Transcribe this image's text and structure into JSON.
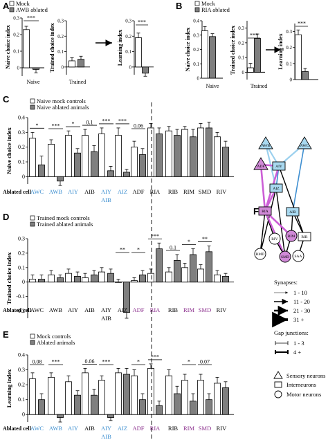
{
  "panel_letters": [
    "A",
    "B",
    "C",
    "D",
    "E",
    "F"
  ],
  "colors": {
    "mock": "#ffffff",
    "ablated": "#7f7f7f",
    "sensory_blue": "#3d8fd0",
    "purple": "#8a2d8c",
    "node_blue": "#a9d9f0",
    "node_magenta": "#d18ad8",
    "edge_magenta": "#cc5fd6",
    "edge_lightblue": "#9bd0ee",
    "edge_blue": "#3e8fd1"
  },
  "chart_data": [
    {
      "id": "A1",
      "type": "bar",
      "ylabel": "Naive choice index",
      "ylim": [
        -0.05,
        0.3
      ],
      "yticks": [
        "0",
        "0.1",
        "0.2",
        "0.3"
      ],
      "categories": [
        "Naive"
      ],
      "legend": [
        "Mock",
        "AWB ablated"
      ],
      "series": [
        {
          "name": "Mock",
          "values": [
            0.23
          ],
          "err": [
            0.02
          ]
        },
        {
          "name": "AWB ablated",
          "values": [
            -0.01
          ],
          "err": [
            0.02
          ]
        }
      ],
      "sig": [
        {
          "label": "***"
        }
      ]
    },
    {
      "id": "A2",
      "type": "bar",
      "ylabel": "Trained choice index",
      "ylim": [
        -0.05,
        0.3
      ],
      "yticks": [
        "0",
        "0.1",
        "0.2",
        "0.3"
      ],
      "categories": [
        "Trained"
      ],
      "series": [
        {
          "values": [
            0.04
          ],
          "err": [
            0.02
          ]
        },
        {
          "values": [
            0.05
          ],
          "err": [
            0.02
          ]
        }
      ]
    },
    {
      "id": "A3",
      "type": "bar",
      "ylabel": "Learning index",
      "ylim": [
        -0.05,
        0.3
      ],
      "yticks": [
        "0",
        "0.1",
        "0.2",
        "0.3"
      ],
      "series": [
        {
          "values": [
            0.19
          ],
          "err": [
            0.03
          ]
        },
        {
          "values": [
            -0.04
          ],
          "err": [
            0.02
          ]
        }
      ],
      "sig": [
        {
          "label": "***"
        }
      ]
    },
    {
      "id": "B1",
      "type": "bar",
      "ylabel": "Naive choice index",
      "ylim": [
        0,
        0.4
      ],
      "yticks": [
        "0",
        "0.1",
        "0.2",
        "0.3",
        "0.4"
      ],
      "categories": [
        "Naive"
      ],
      "legend": [
        "Mock",
        "RIA ablated"
      ],
      "series": [
        {
          "name": "Mock",
          "values": [
            0.33
          ],
          "err": [
            0.03
          ]
        },
        {
          "name": "RIA ablated",
          "values": [
            0.29
          ],
          "err": [
            0.02
          ]
        }
      ]
    },
    {
      "id": "B2",
      "type": "bar",
      "ylabel": "Trained choice index",
      "ylim": [
        -0.05,
        0.35
      ],
      "yticks": [
        "0",
        "0.1",
        "0.2",
        "0.3"
      ],
      "categories": [
        "Trained"
      ],
      "series": [
        {
          "values": [
            0.03
          ],
          "err": [
            0.03
          ]
        },
        {
          "values": [
            0.23
          ],
          "err": [
            0.03
          ]
        }
      ],
      "sig": [
        {
          "label": "***"
        }
      ]
    },
    {
      "id": "B3",
      "type": "bar",
      "ylabel": "Learning index",
      "ylim": [
        0,
        0.35
      ],
      "yticks": [
        "0",
        "0.1",
        "0.2",
        "0.3"
      ],
      "series": [
        {
          "values": [
            0.28
          ],
          "err": [
            0.03
          ]
        },
        {
          "values": [
            0.05
          ],
          "err": [
            0.02
          ]
        }
      ],
      "sig": [
        {
          "label": "***"
        }
      ]
    },
    {
      "id": "C",
      "type": "bar",
      "ylabel": "Naive choice index",
      "ylim": [
        -0.05,
        0.4
      ],
      "yticks": [
        "0",
        "0.1",
        "0.2",
        "0.3",
        "0.4"
      ],
      "xlabel_title": "Ablated cell",
      "categories": [
        "AWC",
        "AWB",
        "AIY",
        "AIB",
        "AIY AIB",
        "AIZ",
        "ADF",
        "RIA",
        "RIB",
        "RIM",
        "SMD",
        "RIV"
      ],
      "legend": [
        "Naive mock controls",
        "Naive ablated animals"
      ],
      "series": [
        {
          "name": "Naive mock controls",
          "values": [
            0.26,
            0.22,
            0.28,
            0.28,
            0.29,
            0.28,
            0.2,
            0.33,
            0.31,
            0.32,
            0.33,
            0.27
          ],
          "err": [
            0.04,
            0.03,
            0.03,
            0.04,
            0.04,
            0.05,
            0.04,
            0.03,
            0.03,
            0.02,
            0.03,
            0.03
          ]
        },
        {
          "name": "Naive ablated animals",
          "values": [
            0.08,
            -0.03,
            0.16,
            0.17,
            0.04,
            0.03,
            0.15,
            0.29,
            0.28,
            0.27,
            0.33,
            0.2
          ],
          "err": [
            0.06,
            0.03,
            0.03,
            0.04,
            0.03,
            0.02,
            0.04,
            0.04,
            0.04,
            0.05,
            0.04,
            0.04
          ]
        }
      ],
      "sig": [
        {
          "cat": 0,
          "label": "*"
        },
        {
          "cat": 1,
          "label": "***"
        },
        {
          "cat": 2,
          "label": "*"
        },
        {
          "cat": 3,
          "label": "0.1"
        },
        {
          "cat": 4,
          "label": "***"
        },
        {
          "cat": 5,
          "label": "***"
        },
        {
          "cat": 6,
          "label": "0.06"
        }
      ],
      "label_colors": [
        "blue",
        "blue",
        "blue",
        "black",
        "blue",
        "blue",
        "black",
        "black",
        "black",
        "black",
        "black",
        "black"
      ]
    },
    {
      "id": "D",
      "type": "bar",
      "ylabel": "Trained choice index",
      "ylim": [
        -0.25,
        0.3
      ],
      "yticks": [
        "-0.2",
        "-0.1",
        "0",
        "0.1",
        "0.2",
        "0.3"
      ],
      "xlabel_title": "Ablated cell",
      "categories": [
        "AWC",
        "AWB",
        "AIY",
        "AIB",
        "AIY AIB",
        "AIZ",
        "ADF",
        "RIA",
        "RIB",
        "RIM",
        "SMD",
        "RIV"
      ],
      "legend": [
        "Trained mock controls",
        "Trained ablated animals"
      ],
      "series": [
        {
          "name": "Trained mock controls",
          "values": [
            0.02,
            0.05,
            0.06,
            0.03,
            0.07,
            0.0,
            0.01,
            0.06,
            0.07,
            0.1,
            0.09,
            0.05
          ],
          "err": [
            0.03,
            0.03,
            0.03,
            0.03,
            0.03,
            0.02,
            0.02,
            0.03,
            0.03,
            0.03,
            0.03,
            0.03
          ]
        },
        {
          "name": "Trained ablated animals",
          "values": [
            0.02,
            0.03,
            0.04,
            0.05,
            0.06,
            -0.21,
            0.05,
            0.23,
            0.15,
            0.19,
            0.21,
            0.04
          ],
          "err": [
            0.03,
            0.02,
            0.03,
            0.03,
            0.03,
            0.04,
            0.03,
            0.04,
            0.04,
            0.04,
            0.04,
            0.02
          ]
        }
      ],
      "sig": [
        {
          "cat": 5,
          "label": "**"
        },
        {
          "cat": 6,
          "label": "*"
        },
        {
          "cat": 7,
          "label": "***"
        },
        {
          "cat": 8,
          "label": "0.1"
        },
        {
          "cat": 9,
          "label": "*"
        },
        {
          "cat": 10,
          "label": "**"
        }
      ],
      "label_colors": [
        "black",
        "black",
        "black",
        "black",
        "black",
        "black",
        "purple",
        "purple",
        "black",
        "purple",
        "purple",
        "black"
      ]
    },
    {
      "id": "E",
      "type": "bar",
      "ylabel": "Learning index",
      "ylim": [
        -0.05,
        0.4
      ],
      "yticks": [
        "0",
        "0.1",
        "0.2",
        "0.3",
        "0.4"
      ],
      "xlabel_title": "Ablated cell",
      "categories": [
        "AWC",
        "AWB",
        "AIY",
        "AIB",
        "AIY AIB",
        "AIZ",
        "ADF",
        "RIA",
        "RIB",
        "RIM",
        "SMD",
        "RIV"
      ],
      "legend": [
        "Mock controls",
        "Ablated animals"
      ],
      "series": [
        {
          "name": "Mock controls",
          "values": [
            0.24,
            0.25,
            0.22,
            0.28,
            0.23,
            0.28,
            0.26,
            0.31,
            0.26,
            0.23,
            0.23,
            0.21
          ],
          "err": [
            0.04,
            0.03,
            0.04,
            0.03,
            0.03,
            0.03,
            0.04,
            0.03,
            0.04,
            0.04,
            0.04,
            0.04
          ]
        },
        {
          "name": "Ablated animals",
          "values": [
            0.1,
            -0.02,
            0.13,
            0.13,
            -0.02,
            0.27,
            0.1,
            0.06,
            0.14,
            0.09,
            0.1,
            0.18
          ],
          "err": [
            0.04,
            0.03,
            0.03,
            0.04,
            0.02,
            0.04,
            0.04,
            0.03,
            0.05,
            0.05,
            0.04,
            0.04
          ]
        }
      ],
      "sig": [
        {
          "cat": 0,
          "label": "0.08"
        },
        {
          "cat": 1,
          "label": "***"
        },
        {
          "cat": 3,
          "label": "0.06"
        },
        {
          "cat": 4,
          "label": "***"
        },
        {
          "cat": 6,
          "label": "*"
        },
        {
          "cat": 7,
          "label": "***"
        },
        {
          "cat": 9,
          "label": "*"
        },
        {
          "cat": 10,
          "label": "0.07"
        }
      ],
      "label_colors": [
        "blue",
        "blue",
        "blue",
        "black",
        "blue",
        "blue",
        "purple",
        "purple",
        "black",
        "purple",
        "purple",
        "black"
      ]
    }
  ],
  "diagram": {
    "type": "network",
    "nodes": [
      {
        "id": "AWB",
        "shape": "triangle",
        "fill": "blue"
      },
      {
        "id": "AWC",
        "shape": "triangle",
        "fill": "blue"
      },
      {
        "id": "ADF",
        "shape": "triangle",
        "fill": "magenta"
      },
      {
        "id": "AIY",
        "shape": "square",
        "fill": "blue"
      },
      {
        "id": "AIZ",
        "shape": "square",
        "fill": "blue"
      },
      {
        "id": "RIA",
        "shape": "square",
        "fill": "magenta"
      },
      {
        "id": "AIB",
        "shape": "square",
        "fill": "blue"
      },
      {
        "id": "RIB",
        "shape": "square",
        "fill": "white"
      },
      {
        "id": "RIV",
        "shape": "circle",
        "fill": "white"
      },
      {
        "id": "RIM",
        "shape": "circle",
        "fill": "magenta"
      },
      {
        "id": "RMD",
        "shape": "circle",
        "fill": "white"
      },
      {
        "id": "SMD",
        "shape": "circle",
        "fill": "magenta"
      },
      {
        "id": "SAA",
        "shape": "circle",
        "fill": "white"
      }
    ],
    "edges": [
      {
        "from": "AWC",
        "to": "AIY",
        "color": "lightblue"
      },
      {
        "from": "AWB",
        "to": "AIY",
        "color": "lightblue"
      },
      {
        "from": "AWB",
        "to": "AIZ",
        "color": "lightblue"
      },
      {
        "from": "AWC",
        "to": "AIB",
        "color": "blue"
      },
      {
        "from": "ADF",
        "to": "AIY",
        "color": "magenta"
      },
      {
        "from": "ADF",
        "to": "RIA",
        "color": "magenta"
      },
      {
        "from": "AIY",
        "to": "AIZ",
        "color": "blue"
      },
      {
        "from": "AIY",
        "to": "RIA",
        "color": "magenta"
      },
      {
        "from": "AIY",
        "to": "RIB",
        "color": "black"
      },
      {
        "from": "AIZ",
        "to": "RIA",
        "color": "magenta"
      },
      {
        "from": "AIZ",
        "to": "RMD",
        "color": "black"
      },
      {
        "from": "AIZ",
        "to": "SMD",
        "color": "black"
      },
      {
        "from": "RIA",
        "to": "RIV",
        "color": "black"
      },
      {
        "from": "RIA",
        "to": "RIM",
        "color": "magenta"
      },
      {
        "from": "RIA",
        "to": "SMD",
        "color": "magenta"
      },
      {
        "from": "RIA",
        "to": "RMD",
        "color": "black"
      },
      {
        "from": "AIB",
        "to": "RIM",
        "color": "black"
      },
      {
        "from": "AIB",
        "to": "RIB",
        "color": "black"
      },
      {
        "from": "RIB",
        "to": "SAA",
        "color": "black"
      },
      {
        "from": "RIM",
        "to": "SMD",
        "color": "black"
      },
      {
        "from": "RIV",
        "to": "SMD",
        "color": "black"
      }
    ],
    "legend": {
      "synapses_title": "Synapses:",
      "synapses": [
        "1 - 10",
        "11 - 20",
        "21 - 30",
        "31 +"
      ],
      "gap_title": "Gap junctions:",
      "gap": [
        "1 - 3",
        "4 +"
      ],
      "shapes": [
        "Sensory neurons",
        "Interneurons",
        "Motor neurons"
      ]
    }
  }
}
